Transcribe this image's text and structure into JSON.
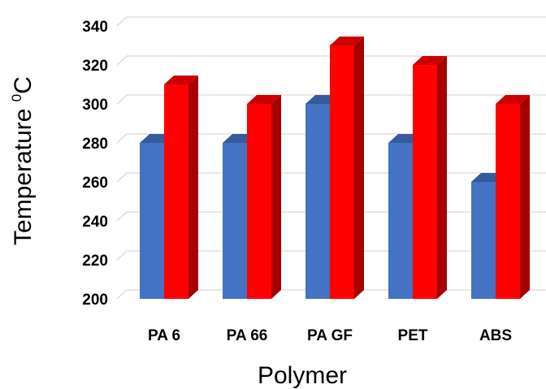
{
  "chart_data": {
    "type": "bar",
    "style": "3d-clustered-column",
    "categories": [
      "PA 6",
      "PA 66",
      "PA GF",
      "PET",
      "ABS"
    ],
    "series": [
      {
        "color": "#4472c4",
        "values": [
          280,
          280,
          300,
          280,
          260
        ]
      },
      {
        "color": "#ff0000",
        "values": [
          310,
          300,
          330,
          320,
          300
        ]
      }
    ],
    "xlabel": "Polymer",
    "ylabel": {
      "main": "Temperature ",
      "sup": "0",
      "unit": "C"
    },
    "ylim": [
      200,
      340
    ],
    "yticks": [
      200,
      220,
      240,
      260,
      280,
      300,
      320,
      340
    ],
    "grid": true,
    "legend": "none"
  }
}
